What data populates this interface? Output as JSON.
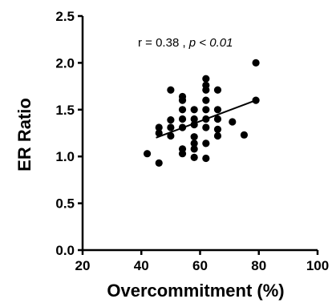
{
  "chart_data": {
    "type": "scatter",
    "xlabel": "Overcommitment (%)",
    "ylabel": "ER Ratio",
    "xlim": [
      20,
      100
    ],
    "ylim": [
      0.0,
      2.5
    ],
    "x_ticks": [
      "20",
      "40",
      "60",
      "80",
      "100"
    ],
    "y_ticks": [
      "0.0",
      "0.5",
      "1.0",
      "1.5",
      "2.0",
      "2.5"
    ],
    "grid": false,
    "legend": "none",
    "annotation": {
      "prefix": "r = 0.38 , ",
      "italic": "p < 0.01"
    },
    "point_color": "#000000",
    "trendline": {
      "x": [
        45,
        79
      ],
      "y": [
        1.2,
        1.6
      ]
    },
    "points": [
      {
        "x": 42,
        "y": 1.03
      },
      {
        "x": 46,
        "y": 0.93
      },
      {
        "x": 46,
        "y": 1.25
      },
      {
        "x": 46,
        "y": 1.31
      },
      {
        "x": 50,
        "y": 1.71
      },
      {
        "x": 50,
        "y": 1.39
      },
      {
        "x": 50,
        "y": 1.31
      },
      {
        "x": 50,
        "y": 1.22
      },
      {
        "x": 54,
        "y": 1.64
      },
      {
        "x": 54,
        "y": 1.6
      },
      {
        "x": 54,
        "y": 1.5
      },
      {
        "x": 54,
        "y": 1.4
      },
      {
        "x": 54,
        "y": 1.31
      },
      {
        "x": 54,
        "y": 1.08
      },
      {
        "x": 54,
        "y": 1.03
      },
      {
        "x": 58,
        "y": 1.5
      },
      {
        "x": 58,
        "y": 1.4
      },
      {
        "x": 58,
        "y": 1.34
      },
      {
        "x": 58,
        "y": 1.21
      },
      {
        "x": 58,
        "y": 1.14
      },
      {
        "x": 58,
        "y": 1.08
      },
      {
        "x": 58,
        "y": 0.99
      },
      {
        "x": 62,
        "y": 1.83
      },
      {
        "x": 62,
        "y": 1.76
      },
      {
        "x": 62,
        "y": 1.71
      },
      {
        "x": 62,
        "y": 1.6
      },
      {
        "x": 62,
        "y": 1.5
      },
      {
        "x": 62,
        "y": 1.4
      },
      {
        "x": 62,
        "y": 1.31
      },
      {
        "x": 62,
        "y": 1.14
      },
      {
        "x": 62,
        "y": 0.98
      },
      {
        "x": 66,
        "y": 1.71
      },
      {
        "x": 66,
        "y": 1.5
      },
      {
        "x": 66,
        "y": 1.4
      },
      {
        "x": 66,
        "y": 1.29
      },
      {
        "x": 66,
        "y": 1.22
      },
      {
        "x": 71,
        "y": 1.37
      },
      {
        "x": 75,
        "y": 1.23
      },
      {
        "x": 79,
        "y": 2.0
      },
      {
        "x": 79,
        "y": 1.6
      }
    ]
  }
}
